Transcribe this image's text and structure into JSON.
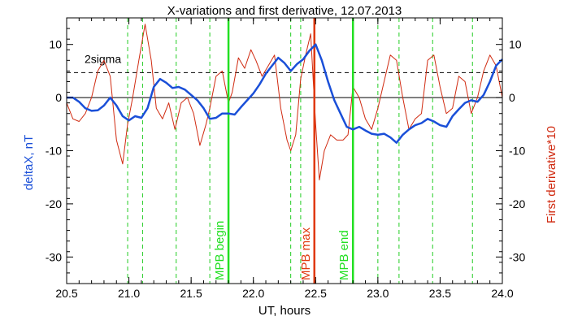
{
  "chart_data": {
    "type": "line",
    "title": "X-variations and first derivative, 12.07.2013",
    "xlabel": "UT, hours",
    "ylabel_left": "deltaX, nT",
    "ylabel_right": "First derivative*10",
    "xlim": [
      20.5,
      24.0
    ],
    "ylim": [
      -35,
      15
    ],
    "x_ticks": [
      20.5,
      21.0,
      21.5,
      22.0,
      22.5,
      23.0,
      23.5,
      24.0
    ],
    "x_tick_labels": [
      "20.5",
      "21.0",
      "21.5",
      "22.0",
      "22.5",
      "23.0",
      "23.5",
      "24.0"
    ],
    "y_ticks": [
      -30,
      -20,
      -10,
      0,
      10
    ],
    "y_tick_labels": [
      "-30",
      "-20",
      "-10",
      "0",
      "10"
    ],
    "grid": false,
    "colors": {
      "deltaX": "#1a4fd8",
      "derivative": "#d02a10",
      "mpb_max": "#e03a10",
      "mpb_bounds": "#22e022",
      "dashed_green": "#22cc22",
      "sigma": "#000000"
    },
    "sigma": {
      "label": "2sigma",
      "value": 4.7
    },
    "vertical_lines": {
      "mpb_begin": {
        "x": 21.8,
        "label": "MPB begin"
      },
      "mpb_max": {
        "x": 22.49,
        "label": "MPB max"
      },
      "mpb_end": {
        "x": 22.8,
        "label": "MPB end"
      },
      "dashed_x": [
        20.99,
        21.11,
        21.38,
        21.65,
        22.3,
        22.38,
        23.0,
        23.17,
        23.44,
        23.76
      ]
    },
    "series": [
      {
        "name": "deltaX",
        "x": [
          20.5,
          20.55,
          20.6,
          20.65,
          20.7,
          20.75,
          20.8,
          20.85,
          20.9,
          20.95,
          21.0,
          21.05,
          21.1,
          21.15,
          21.2,
          21.25,
          21.3,
          21.35,
          21.4,
          21.45,
          21.5,
          21.55,
          21.6,
          21.65,
          21.7,
          21.75,
          21.8,
          21.85,
          21.9,
          21.95,
          22.0,
          22.05,
          22.1,
          22.15,
          22.2,
          22.25,
          22.3,
          22.35,
          22.4,
          22.45,
          22.5,
          22.55,
          22.6,
          22.65,
          22.7,
          22.75,
          22.8,
          22.85,
          22.9,
          22.95,
          23.0,
          23.05,
          23.1,
          23.15,
          23.2,
          23.25,
          23.3,
          23.35,
          23.4,
          23.45,
          23.5,
          23.55,
          23.6,
          23.65,
          23.7,
          23.75,
          23.8,
          23.85,
          23.9,
          23.95,
          24.0
        ],
        "y": [
          0,
          0,
          -0.8,
          -2,
          -2.5,
          -2.4,
          -1.5,
          0,
          -1.5,
          -3.5,
          -4.3,
          -3.5,
          -3.8,
          -2,
          2,
          3.5,
          2.8,
          1.8,
          2,
          1.5,
          0.5,
          -0.5,
          -2,
          -4,
          -3.8,
          -3,
          -3,
          -3.2,
          -1.8,
          -0.5,
          0.8,
          2.5,
          4.5,
          6,
          7.5,
          6.5,
          5,
          6.3,
          7.2,
          8.8,
          10,
          7,
          3,
          -0.5,
          -3,
          -5.5,
          -6,
          -5.5,
          -6.2,
          -6.8,
          -7,
          -6.8,
          -7.5,
          -8.5,
          -7,
          -6,
          -5.2,
          -4.8,
          -4,
          -4.5,
          -5.2,
          -5.5,
          -3.5,
          -2.2,
          -1,
          -0.5,
          -0.8,
          0.5,
          3,
          6,
          7.2
        ]
      },
      {
        "name": "First derivative*10",
        "x": [
          20.5,
          20.55,
          20.6,
          20.65,
          20.7,
          20.75,
          20.8,
          20.85,
          20.9,
          20.95,
          20.99,
          21.03,
          21.08,
          21.13,
          21.18,
          21.22,
          21.27,
          21.32,
          21.37,
          21.42,
          21.47,
          21.52,
          21.57,
          21.62,
          21.65,
          21.7,
          21.75,
          21.8,
          21.83,
          21.88,
          21.93,
          21.98,
          22.02,
          22.07,
          22.12,
          22.17,
          22.22,
          22.27,
          22.3,
          22.34,
          22.38,
          22.42,
          22.46,
          22.5,
          22.53,
          22.57,
          22.62,
          22.67,
          22.72,
          22.76,
          22.8,
          22.85,
          22.9,
          22.95,
          23.0,
          23.05,
          23.1,
          23.15,
          23.2,
          23.25,
          23.3,
          23.35,
          23.4,
          23.45,
          23.5,
          23.55,
          23.6,
          23.65,
          23.7,
          23.75,
          23.8,
          23.85,
          23.9,
          23.95,
          24.0
        ],
        "y": [
          -1,
          -4,
          -4.5,
          -3,
          0,
          5,
          7,
          4,
          -8,
          -12.5,
          -5,
          0,
          7,
          13.8,
          7,
          -2,
          -4,
          -1,
          -6,
          -1,
          0,
          -3,
          -9,
          -5,
          -2,
          4,
          5,
          -1,
          1,
          7.5,
          5.5,
          9,
          7,
          4,
          6,
          8,
          -2,
          -8,
          -10,
          -7,
          3.5,
          8,
          12,
          -5,
          -15.5,
          -10,
          -7,
          -8,
          -8,
          -7,
          2,
          0,
          -4,
          -6,
          -2,
          3,
          8,
          7,
          0,
          -6,
          -4,
          -3,
          7,
          8,
          2,
          -3,
          -2,
          4,
          3,
          -3,
          0,
          5,
          8,
          6,
          0
        ]
      }
    ]
  }
}
